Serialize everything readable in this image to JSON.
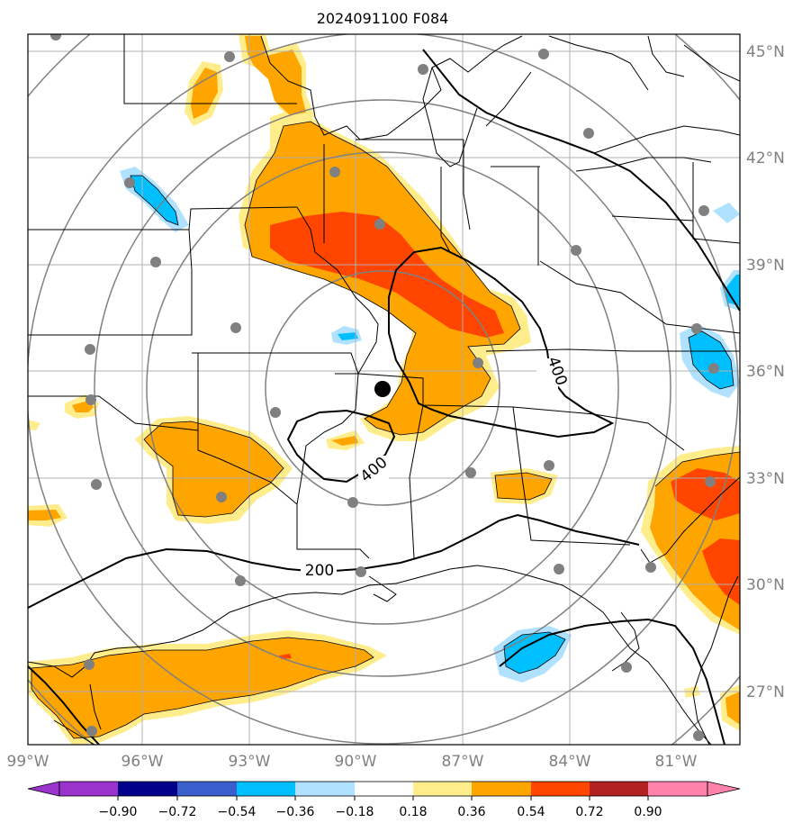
{
  "title": "2024091100 F084",
  "longitude_labels": [
    "99°W",
    "96°W",
    "93°W",
    "90°W",
    "87°W",
    "84°W",
    "81°W"
  ],
  "latitude_labels": [
    "45°N",
    "42°N",
    "39°N",
    "36°N",
    "33°N",
    "30°N",
    "27°N"
  ],
  "colorbar": {
    "tick_labels": [
      "−0.90",
      "−0.72",
      "−0.54",
      "−0.36",
      "−0.18",
      "0.18",
      "0.36",
      "0.54",
      "0.72",
      "0.90"
    ],
    "colors": [
      "#9933cc",
      "#00008b",
      "#3a5fcd",
      "#00bfff",
      "#b0e2ff",
      "#ffffff",
      "#ffec8b",
      "#ffa500",
      "#ff4500",
      "#b22222",
      "#ff82ab"
    ]
  },
  "contour_labels": {
    "label_200": "200",
    "label_400_east": "400",
    "label_400_south": "400"
  },
  "fill_colors": {
    "light_yellow": "#ffec8b",
    "orange": "#ffa500",
    "red_orange": "#ff4500",
    "deep_sky_blue": "#00bfff",
    "light_blue": "#b0e2ff"
  },
  "marker_colors": {
    "station_dot": "#808080",
    "center_dot": "#000000"
  }
}
